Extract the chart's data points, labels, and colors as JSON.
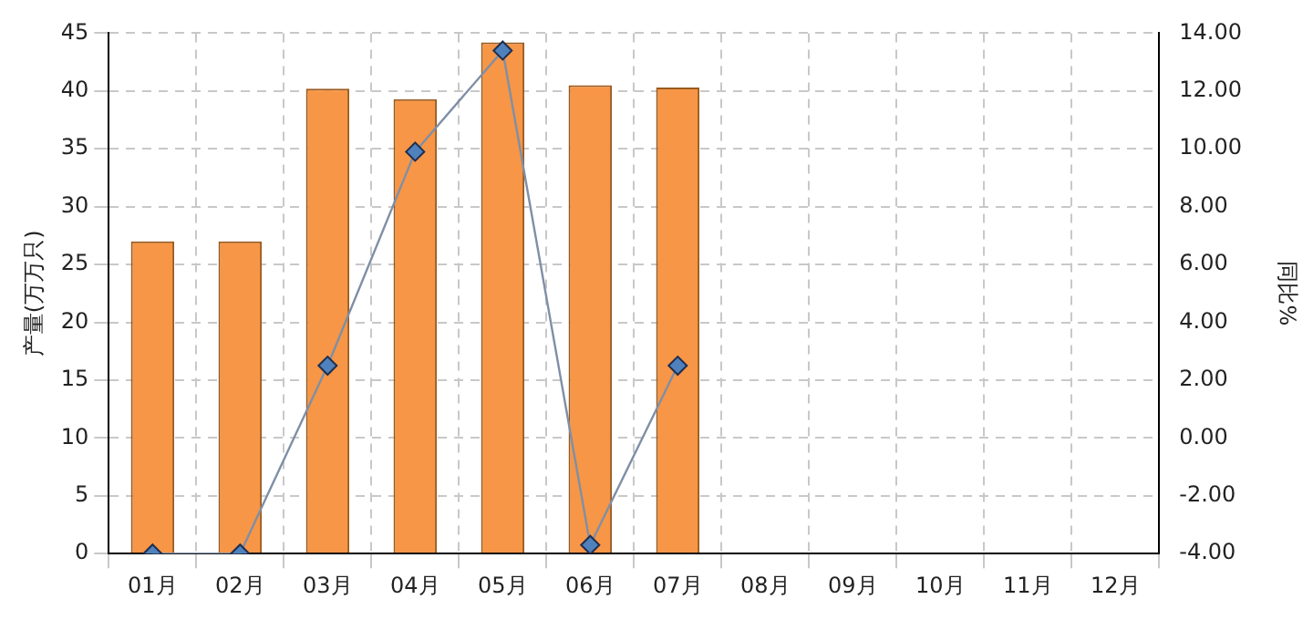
{
  "chart_data": {
    "type": "bar",
    "ylabel": "产量(万万只)",
    "y2label": "同比%",
    "categories": [
      "01月",
      "02月",
      "03月",
      "04月",
      "05月",
      "06月",
      "07月",
      "08月",
      "09月",
      "10月",
      "11月",
      "12月"
    ],
    "series": [
      {
        "color": "#f79646",
        "values": [
          27,
          27,
          40.2,
          39.3,
          44.2,
          40.5,
          40.3,
          null,
          null,
          null,
          null,
          null
        ]
      },
      {
        "type": "line",
        "axis": "y2",
        "color": "#4f81bd",
        "marker": "diamond",
        "values": [
          -4,
          -4,
          2.5,
          9.9,
          13.4,
          -3.7,
          2.5,
          null,
          null,
          null,
          null,
          null
        ]
      }
    ],
    "ylim": [
      0,
      45
    ],
    "yticks": [
      0,
      5,
      10,
      15,
      20,
      25,
      30,
      35,
      40,
      45
    ],
    "y2lim": [
      -4,
      14
    ],
    "y2ticks": [
      {
        "value": -4,
        "label": "-4.00"
      },
      {
        "value": -2,
        "label": "-2.00"
      },
      {
        "value": 0,
        "label": "0.00"
      },
      {
        "value": 2,
        "label": "2.00"
      },
      {
        "value": 4,
        "label": "4.00"
      },
      {
        "value": 6,
        "label": "6.00"
      },
      {
        "value": 8,
        "label": "8.00"
      },
      {
        "value": 10,
        "label": "10.00"
      },
      {
        "value": 12,
        "label": "12.00"
      },
      {
        "value": 14,
        "label": "14.00"
      }
    ],
    "grid": true,
    "legend": false
  }
}
